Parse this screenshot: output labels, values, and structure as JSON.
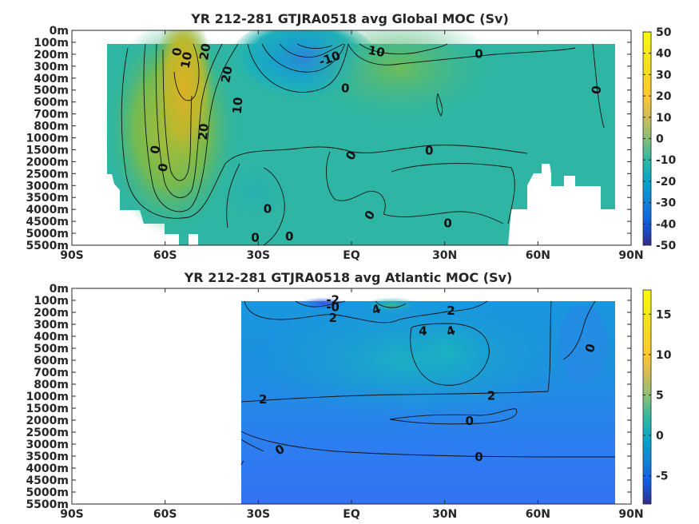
{
  "chart_data": [
    {
      "type": "heatmap",
      "title": "YR 212-281 GTJRA0518 avg  Global MOC (Sv)",
      "x_ticks": [
        "90S",
        "60S",
        "30S",
        "EQ",
        "30N",
        "60N",
        "90N"
      ],
      "x_values": [
        -90,
        -60,
        -30,
        0,
        30,
        60,
        90
      ],
      "y_ticks": [
        "0m",
        "100m",
        "200m",
        "300m",
        "400m",
        "500m",
        "600m",
        "700m",
        "800m",
        "1000m",
        "1500m",
        "2000m",
        "2500m",
        "3000m",
        "3500m",
        "4000m",
        "4500m",
        "5000m",
        "5500m"
      ],
      "xlim": [
        -90,
        90
      ],
      "colorbar": {
        "min": -50,
        "max": 50,
        "ticks": [
          "50",
          "40",
          "30",
          "20",
          "10",
          "0",
          "-10",
          "-20",
          "-30",
          "-40",
          "-50"
        ]
      },
      "contour_labels": [
        {
          "text": "0",
          "x": -56,
          "depth": 1.8,
          "rot": -80
        },
        {
          "text": "10",
          "x": -53,
          "depth": 2.5,
          "rot": -80
        },
        {
          "text": "20",
          "x": -47,
          "depth": 1.8,
          "rot": -80
        },
        {
          "text": "20",
          "x": -40,
          "depth": 3.7,
          "rot": -80
        },
        {
          "text": "10",
          "x": -36.5,
          "depth": 6.3,
          "rot": -85
        },
        {
          "text": "20",
          "x": -47.5,
          "depth": 8.5,
          "rot": -85
        },
        {
          "text": "0",
          "x": -63,
          "depth": 10.0,
          "rot": -80
        },
        {
          "text": "0",
          "x": -60.5,
          "depth": 11.5,
          "rot": -80
        },
        {
          "text": "-10",
          "x": -7,
          "depth": 2.4,
          "rot": -20
        },
        {
          "text": "10",
          "x": 8,
          "depth": 1.8,
          "rot": 10
        },
        {
          "text": "0",
          "x": 41,
          "depth": 2.0,
          "rot": 0
        },
        {
          "text": "0",
          "x": 79,
          "depth": 5.0,
          "rot": -80
        },
        {
          "text": "0",
          "x": -2,
          "depth": 4.9,
          "rot": 0
        },
        {
          "text": "0",
          "x": 25,
          "depth": 10.1,
          "rot": 0
        },
        {
          "text": "0",
          "x": 0,
          "depth": 10.5,
          "rot": -60
        },
        {
          "text": "0",
          "x": -27,
          "depth": 15.0,
          "rot": 0
        },
        {
          "text": "0",
          "x": -31,
          "depth": 17.4,
          "rot": 0
        },
        {
          "text": "0",
          "x": -20,
          "depth": 17.3,
          "rot": 0
        },
        {
          "text": "0",
          "x": 6,
          "depth": 15.5,
          "rot": -60
        },
        {
          "text": "0",
          "x": 31,
          "depth": 16.2,
          "rot": 0
        }
      ]
    },
    {
      "type": "heatmap",
      "title": "YR 212-281 GTJRA0518 avg  Atlantic MOC (Sv)",
      "x_ticks": [
        "90S",
        "60S",
        "30S",
        "EQ",
        "30N",
        "60N",
        "90N"
      ],
      "x_values": [
        -90,
        -60,
        -30,
        0,
        30,
        60,
        90
      ],
      "y_ticks": [
        "0m",
        "100m",
        "200m",
        "300m",
        "400m",
        "500m",
        "600m",
        "700m",
        "800m",
        "1000m",
        "1500m",
        "2000m",
        "2500m",
        "3000m",
        "3500m",
        "4000m",
        "4500m",
        "5000m",
        "5500m"
      ],
      "xlim": [
        -90,
        90
      ],
      "colorbar": {
        "min": -8.5,
        "max": 18,
        "ticks": [
          "15",
          "10",
          "5",
          "0",
          "-5"
        ],
        "tick_values": [
          15,
          10,
          5,
          0,
          -5
        ]
      },
      "contour_labels": [
        {
          "text": "-2",
          "x": -6,
          "depth": 1.0,
          "rot": 0
        },
        {
          "text": "-0",
          "x": -6,
          "depth": 1.6,
          "rot": 0
        },
        {
          "text": "2",
          "x": -6,
          "depth": 2.5,
          "rot": 0
        },
        {
          "text": "4",
          "x": 8,
          "depth": 1.8,
          "rot": -20
        },
        {
          "text": "2",
          "x": 32,
          "depth": 1.9,
          "rot": 0
        },
        {
          "text": "4",
          "x": 23,
          "depth": 3.6,
          "rot": 0
        },
        {
          "text": "4",
          "x": 32,
          "depth": 3.6,
          "rot": -20
        },
        {
          "text": "0",
          "x": 77,
          "depth": 5.0,
          "rot": -70
        },
        {
          "text": "2",
          "x": -28.5,
          "depth": 9.3,
          "rot": 0
        },
        {
          "text": "2",
          "x": 45,
          "depth": 9.0,
          "rot": 0
        },
        {
          "text": "0",
          "x": 38,
          "depth": 11.1,
          "rot": 0
        },
        {
          "text": "0",
          "x": -23,
          "depth": 13.5,
          "rot": -30
        },
        {
          "text": "0",
          "x": 41,
          "depth": 14.1,
          "rot": 0
        }
      ]
    }
  ]
}
